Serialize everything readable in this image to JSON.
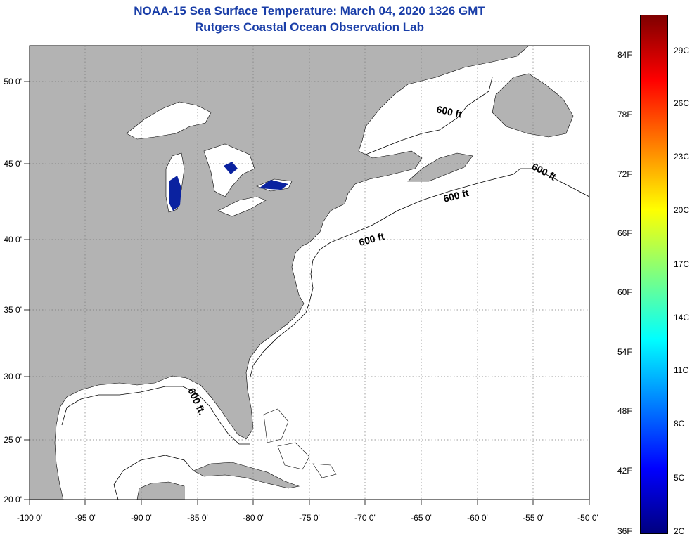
{
  "title": {
    "line1": "NOAA-15 Sea Surface Temperature:  March 04, 2020 1326 GMT",
    "line2": "Rutgers Coastal Ocean Observation Lab"
  },
  "colors": {
    "land": "#b3b3b3",
    "ocean_no_data": "#ffffff",
    "cold_water": "#0a22a0",
    "grid": "#777777",
    "title": "#1a3ea8"
  },
  "map": {
    "lon_range": [
      -100,
      -50
    ],
    "lat_range": [
      20,
      52.5
    ],
    "lon_ticks": [
      "-100 0'",
      "-95 0'",
      "-90 0'",
      "-85 0'",
      "-80 0'",
      "-75 0'",
      "-70 0'",
      "-65 0'",
      "-60 0'",
      "-55 0'",
      "-50 0'"
    ],
    "lat_ticks": [
      "50 0'",
      "45 0'",
      "40 0'",
      "35 0'",
      "30 0'",
      "25 0'",
      "20 0'"
    ],
    "contour_labels": [
      "600 ft",
      "600 ft",
      "600 ft",
      "600 ft",
      "600 ft."
    ]
  },
  "colorbar": {
    "gradient": [
      "#00007f",
      "#0000ff",
      "#007fff",
      "#00ffff",
      "#7fff7f",
      "#ffff00",
      "#ff7f00",
      "#ff0000",
      "#7f0000"
    ],
    "f_labels": [
      "84F",
      "78F",
      "72F",
      "66F",
      "60F",
      "54F",
      "48F",
      "42F",
      "36F"
    ],
    "c_labels": [
      "29C",
      "26C",
      "23C",
      "20C",
      "17C",
      "14C",
      "11C",
      "8C",
      "5C",
      "2C"
    ]
  }
}
